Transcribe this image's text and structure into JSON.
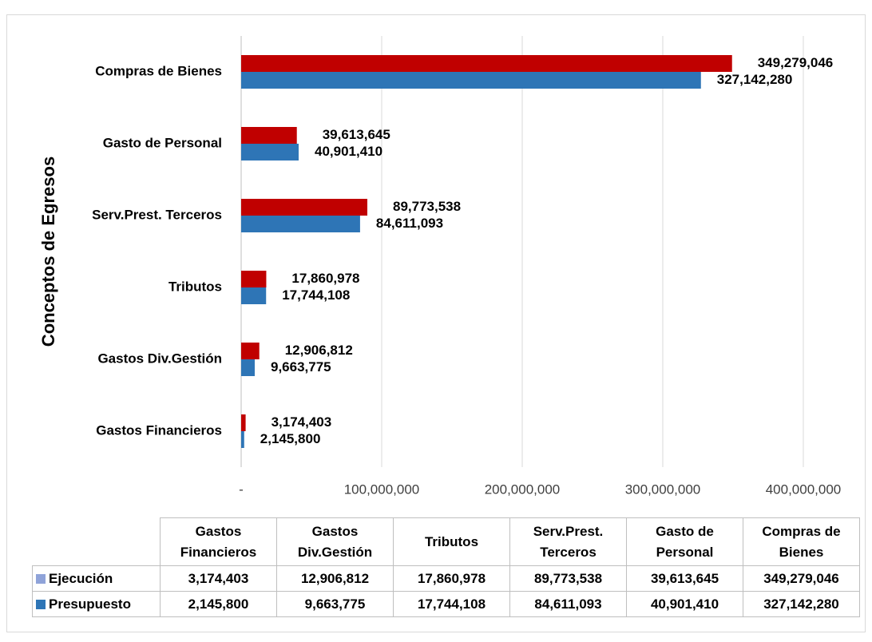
{
  "chart_data": {
    "type": "hbar",
    "ylabel": "Conceptos de Egresos",
    "categories": [
      "Gastos Financieros",
      "Gastos Div.Gestión",
      "Tributos",
      "Serv.Prest. Terceros",
      "Gasto de Personal",
      "Compras de Bienes"
    ],
    "series": [
      {
        "name": "Ejecución",
        "color": "#c00000",
        "legend_color": "#8fa3d9",
        "values": [
          3174403,
          12906812,
          17860978,
          89773538,
          39613645,
          349279046
        ],
        "value_labels": [
          "3,174,403",
          "12,906,812",
          "17,860,978",
          "89,773,538",
          "39,613,645",
          "349,279,046"
        ]
      },
      {
        "name": "Presupuesto",
        "color": "#2e75b6",
        "legend_color": "#2e75b6",
        "values": [
          2145800,
          9663775,
          17744108,
          84611093,
          40901410,
          327142280
        ],
        "value_labels": [
          "2,145,800",
          "9,663,775",
          "17,744,108",
          "84,611,093",
          "40,901,410",
          "327,142,280"
        ]
      }
    ],
    "xlim": [
      0,
      400000000
    ],
    "xticks": [
      {
        "value": 0,
        "label": "-"
      },
      {
        "value": 100000000,
        "label": "100,000,000"
      },
      {
        "value": 200000000,
        "label": "200,000,000"
      },
      {
        "value": 300000000,
        "label": "300,000,000"
      },
      {
        "value": 400000000,
        "label": "400,000,000"
      }
    ],
    "grid": true,
    "data_table": true
  }
}
